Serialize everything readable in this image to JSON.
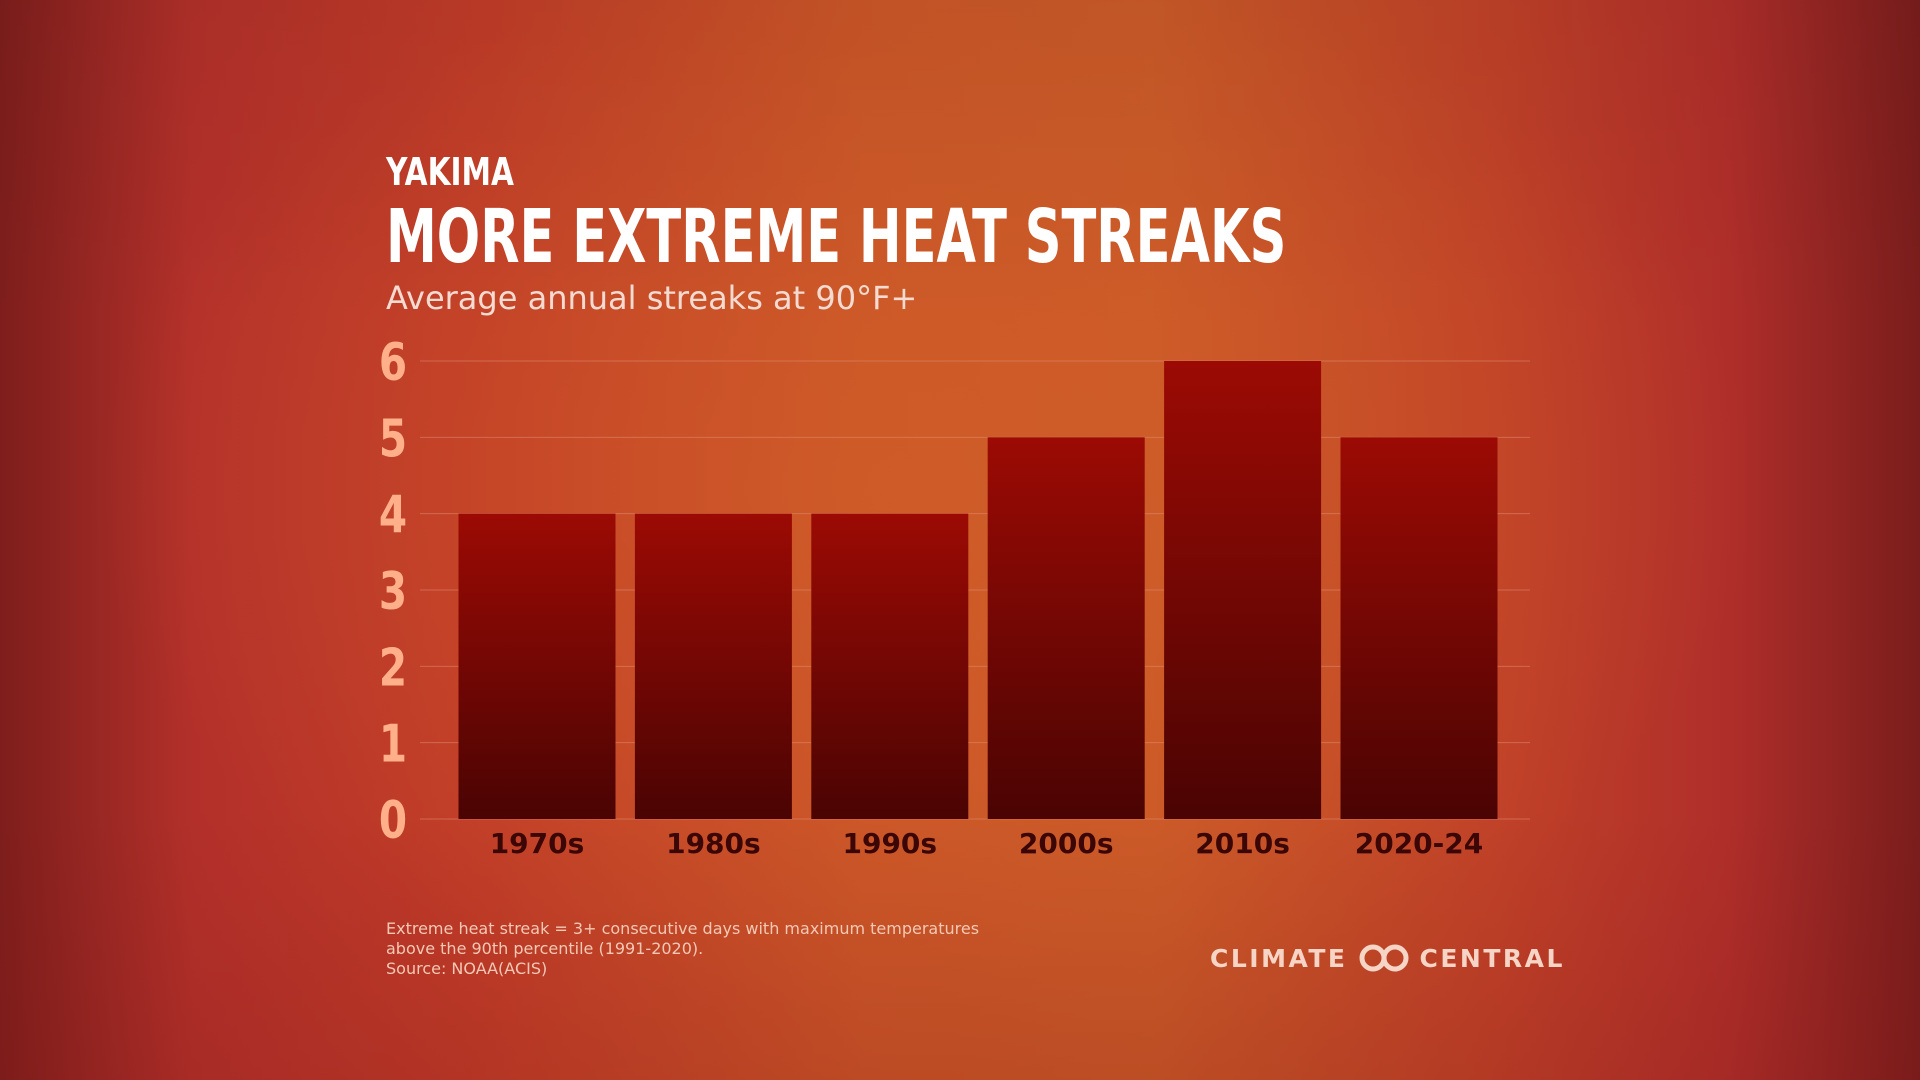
{
  "header": {
    "location": "YAKIMA",
    "title": "MORE EXTREME HEAT STREAKS",
    "subtitle": "Average annual streaks at 90°F+"
  },
  "chart_data": {
    "type": "bar",
    "categories": [
      "1970s",
      "1980s",
      "1990s",
      "2000s",
      "2010s",
      "2020-24"
    ],
    "values": [
      4,
      4,
      4,
      5,
      6,
      5
    ],
    "yticks": [
      "0",
      "1",
      "2",
      "3",
      "4",
      "5",
      "6"
    ],
    "ylim": [
      0,
      6
    ],
    "grid": true,
    "colors": {
      "bar_top": "#9c0a04",
      "bar_bottom": "#4a0403",
      "tick_label": "#ffb08a",
      "category_label": "#3a0606",
      "gridline": "#e08a70"
    }
  },
  "footnote": {
    "line1": "Extreme heat streak = 3+ consecutive days with maximum temperatures",
    "line2": "above the 90th percentile (1991-2020).",
    "source": "Source: NOAA(ACIS)"
  },
  "brand": {
    "left": "CLIMATE",
    "right": "CENTRAL",
    "icon": "climate-central-logo-icon"
  }
}
